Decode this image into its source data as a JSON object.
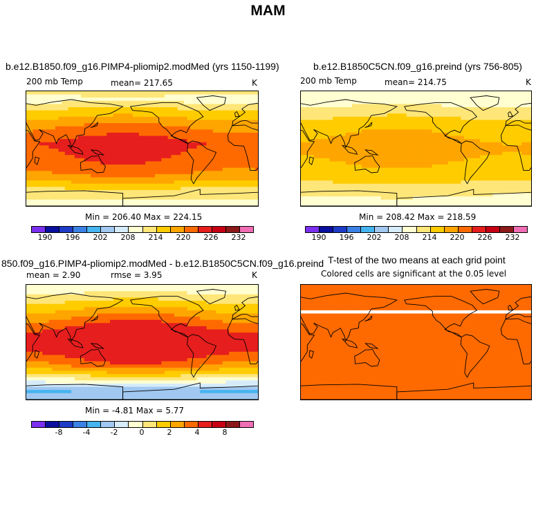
{
  "figure": {
    "title": "MAM"
  },
  "colors": {
    "abs_scale": [
      "#7b2ff0",
      "#0a0f9e",
      "#1e3cc8",
      "#3c82e6",
      "#46b4f0",
      "#a0c8f0",
      "#d6ecfa",
      "#ffffd2",
      "#ffe678",
      "#ffcc00",
      "#ffa500",
      "#ff6a00",
      "#e61e1e",
      "#c80014",
      "#8c1a1a",
      "#f06eb4"
    ],
    "diff_scale": [
      "#7b2ff0",
      "#0a0f9e",
      "#1e3cc8",
      "#3c82e6",
      "#46b4f0",
      "#a0c8f0",
      "#d6ecfa",
      "#ffffd2",
      "#ffe678",
      "#ffcc00",
      "#ffa500",
      "#ff6a00",
      "#e61e1e",
      "#c80014",
      "#8c1a1a",
      "#f06eb4"
    ],
    "ttest": "#ff6a00"
  },
  "chart_data": [
    {
      "type": "heatmap",
      "title": "b.e12.B1850.f09_g16.PIMP4-pliomip2.modMed (yrs 1150-1199)",
      "field_label": "200 mb Temp",
      "mean_text": "mean= 217.65",
      "units": "K",
      "minmax_text": "Min = 206.40 Max = 224.15",
      "min": 206.4,
      "max": 224.15,
      "colorbar_ticks": [
        "190",
        "196",
        "202",
        "208",
        "214",
        "220",
        "226",
        "232"
      ],
      "zonal_profile": [
        212,
        210,
        214,
        217,
        220,
        222,
        224,
        223,
        222,
        221,
        218,
        214,
        212,
        209
      ]
    },
    {
      "type": "heatmap",
      "title": "b.e12.B1850C5CN.f09_g16.preind (yrs 756-805)",
      "field_label": "200 mb Temp",
      "mean_text": "mean= 214.75",
      "units": "K",
      "minmax_text": "Min = 208.42 Max = 218.59",
      "min": 208.42,
      "max": 218.59,
      "colorbar_ticks": [
        "190",
        "196",
        "202",
        "208",
        "214",
        "220",
        "226",
        "232"
      ],
      "zonal_profile": [
        211,
        209,
        212,
        214,
        216,
        217,
        218,
        218,
        217,
        216,
        215,
        212,
        211,
        209
      ]
    },
    {
      "type": "heatmap",
      "title": "850.f09_g16.PIMP4-pliomip2.modMed - b.e12.B1850C5CN.f09_g16.preind",
      "mean_text": "mean =     2.90",
      "rmse_text": "rmse =     3.95",
      "units": "K",
      "minmax_text": "Min =   -4.81  Max =     5.77",
      "min": -4.81,
      "max": 5.77,
      "colorbar_ticks": [
        "-8",
        "-4",
        "-2",
        "0",
        "2",
        "4",
        "8"
      ],
      "zonal_profile": [
        -1,
        0,
        1,
        2,
        3,
        4,
        5,
        5,
        5,
        4,
        3,
        1,
        -1,
        -3,
        -2
      ]
    },
    {
      "type": "heatmap",
      "title": "T-test of the two means at each grid point",
      "subtitle": "Colored cells are significant at the 0.05 level",
      "significant_fraction": 0.98
    }
  ]
}
